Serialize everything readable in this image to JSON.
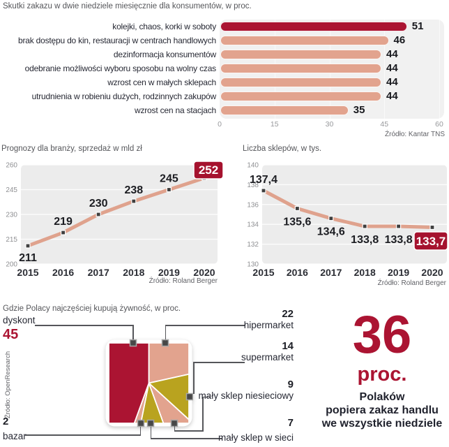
{
  "colors": {
    "red": "#ab1432",
    "badge": "#a5122e",
    "salmon": "#e2a38e",
    "olive": "#b9a31f",
    "line": "#dfa28d",
    "panel": "#efefef",
    "dark": "#1d1f26",
    "text": "#262833",
    "title_gray": "#55565a",
    "axis": "#8f9093",
    "source": "#606166",
    "connector": "#55565a",
    "marker_fill": "#474747",
    "marker_ring": "#a6a6a6",
    "white": "#ffffff"
  },
  "chart_data": [
    {
      "type": "bar",
      "orientation": "horizontal",
      "title": "Skutki zakazu w dwie niedziele miesięcznie dla konsumentów, w proc.",
      "source": "Źródło: Kantar TNS",
      "categories": [
        "kolejki, chaos, korki w soboty",
        "brak dostępu do kin, restauracji w centrach handlowych",
        "dezinformacja konsumentów",
        "odebranie możliwości wyboru sposobu na wolny czas",
        "wzrost cen w małych sklepach",
        "utrudnienia w robieniu dużych, rodzinnych zakupów",
        "wzrost cen na stacjach"
      ],
      "values": [
        51,
        46,
        44,
        44,
        44,
        44,
        35
      ],
      "highlight_index": 0,
      "xticks": [
        0,
        15,
        30,
        45,
        60
      ],
      "xlim": [
        0,
        60
      ]
    },
    {
      "type": "line",
      "title": "Prognozy dla branży, sprzedaż w mld zł",
      "source": "Źródło: Roland Berger",
      "x": [
        2015,
        2016,
        2017,
        2018,
        2019,
        2020
      ],
      "values": [
        211,
        219,
        230,
        238,
        245,
        252
      ],
      "value_labels": [
        "211",
        "219",
        "230",
        "238",
        "245",
        "252"
      ],
      "label_modes": [
        "below",
        "above",
        "above",
        "above",
        "above",
        "badge"
      ],
      "badge_label": "252",
      "yticks": [
        260,
        245,
        230,
        215,
        200
      ],
      "ylim": [
        200,
        260
      ]
    },
    {
      "type": "line",
      "title": "Liczba sklepów, w tys.",
      "source": "Źródło: Roland Berger",
      "x": [
        2015,
        2016,
        2017,
        2018,
        2019,
        2020
      ],
      "values": [
        137.4,
        135.6,
        134.6,
        133.8,
        133.8,
        133.7
      ],
      "value_labels": [
        "137,4",
        "135,6",
        "134,6",
        "133,8",
        "133,8",
        "133,7"
      ],
      "label_modes": [
        "above",
        "below",
        "below",
        "below",
        "below",
        "badge"
      ],
      "badge_label": "133,7",
      "yticks": [
        140,
        138,
        136,
        134,
        132,
        130
      ],
      "ylim": [
        130,
        140
      ]
    },
    {
      "type": "pie",
      "shape": "square",
      "title": "Gdzie Polacy najczęściej kupują żywność, w proc.",
      "source": "Źródło: OpenResearch",
      "slices": [
        {
          "label": "hipermarket",
          "value": 22,
          "color": "salmon"
        },
        {
          "label": "supermarket",
          "value": 14,
          "color": "olive"
        },
        {
          "label": "mały sklep niesieciowy",
          "value": 9,
          "color": "salmon"
        },
        {
          "label": "mały sklep w sieci",
          "value": 7,
          "color": "olive"
        },
        {
          "label": "bazar",
          "value": 2,
          "color": "salmon"
        },
        {
          "label": "dyskont",
          "value": 45,
          "color": "red"
        }
      ]
    }
  ],
  "stat": {
    "value": "36",
    "unit": "proc.",
    "lines": [
      "Polaków",
      "popiera zakaz handlu",
      "we wszystkie niedziele"
    ]
  }
}
